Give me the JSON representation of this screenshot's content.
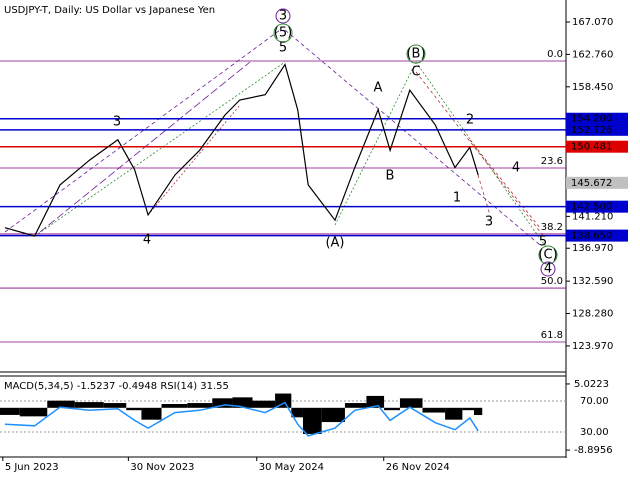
{
  "chart_data": {
    "type": "line",
    "title": "USDJPY-T, Daily:  US Dollar vs Japanese Yen",
    "x": [
      "2023-06-08",
      "2023-07-20",
      "2023-08-25",
      "2023-10-06",
      "2023-11-15",
      "2023-12-09",
      "2023-12-28",
      "2024-02-04",
      "2024-03-10",
      "2024-04-15",
      "2024-05-06",
      "2024-06-11",
      "2024-07-09",
      "2024-07-27",
      "2024-08-11",
      "2024-09-18",
      "2024-10-16",
      "2024-11-18",
      "2024-12-05",
      "2025-01-02",
      "2025-02-07",
      "2025-03-07",
      "2025-03-28",
      "2025-04-09"
    ],
    "values": [
      139.7,
      138.6,
      145.4,
      148.7,
      151.4,
      147.4,
      141.4,
      146.7,
      150.0,
      154.7,
      156.7,
      157.4,
      161.4,
      155.4,
      145.4,
      140.7,
      147.7,
      155.4,
      150.0,
      158.0,
      153.4,
      147.7,
      150.4,
      146.7
    ],
    "color": "#000000",
    "xlim": [
      "2023-06-01",
      "2025-08-10"
    ],
    "xticks": [
      {
        "value": "2023-06-05",
        "label": "5 Jun 2023"
      },
      {
        "value": "2023-11-30",
        "label": "30 Nov 2023"
      },
      {
        "value": "2024-05-30",
        "label": "30 May 2024"
      },
      {
        "value": "2024-11-26",
        "label": "26 Nov 2024"
      }
    ],
    "ylim": [
      120.5,
      170.0
    ],
    "yticks": [
      {
        "value": 167.07,
        "label": "167.070"
      },
      {
        "value": 162.76,
        "label": "162.760"
      },
      {
        "value": 158.45,
        "label": "158.450"
      },
      {
        "value": 141.21,
        "label": "141.210"
      },
      {
        "value": 136.97,
        "label": "136.970"
      },
      {
        "value": 132.59,
        "label": "132.590"
      },
      {
        "value": 128.28,
        "label": "128.280"
      },
      {
        "value": 123.97,
        "label": "123.970"
      }
    ],
    "levels": [
      {
        "value": 154.2,
        "label": "154.200",
        "color": "#0000cc"
      },
      {
        "value": 152.726,
        "color": "#0000cc"
      },
      {
        "value": 150.481,
        "color": "#dd0000"
      },
      {
        "value": 142.5,
        "label": "142.500",
        "color": "#0000cc"
      },
      {
        "value": 138.65,
        "label": "138.650",
        "color": "#0000cc"
      }
    ],
    "current_price": {
      "value": 145.672,
      "color": "#c0c0c0"
    },
    "fib_levels": [
      {
        "value": 161.88,
        "label": "0.0"
      },
      {
        "value": 147.65,
        "label": "23.6"
      },
      {
        "value": 138.87,
        "label": "38.2"
      },
      {
        "value": 131.67,
        "label": "50.0"
      },
      {
        "value": 124.49,
        "label": "61.8"
      }
    ],
    "fib_color": "#800080",
    "annotations": [
      {
        "text": "3",
        "color": "#6a1b9a",
        "circled": true
      },
      {
        "text": "(5)",
        "color": "#2e8b2e",
        "circled": true
      },
      {
        "text": "5",
        "color": "#b03030"
      },
      {
        "text": "3",
        "color": "#b03030"
      },
      {
        "text": "4",
        "color": "#b03030"
      },
      {
        "text": "(A)",
        "color": "#2e8b2e"
      },
      {
        "text": "A",
        "color": "#b03030"
      },
      {
        "text": "B",
        "color": "#b03030"
      },
      {
        "text": "(B)",
        "color": "#2e8b2e",
        "circled": true
      },
      {
        "text": "C",
        "color": "#b03030"
      },
      {
        "text": "2",
        "color": "#b03030"
      },
      {
        "text": "1",
        "color": "#b03030"
      },
      {
        "text": "3",
        "color": "#b03030"
      },
      {
        "text": "4",
        "color": "#b03030"
      },
      {
        "text": "5",
        "color": "#b03030"
      },
      {
        "text": "(C)",
        "color": "#2e8b2e",
        "circled": true
      },
      {
        "text": "4",
        "color": "#6a1b9a",
        "circled": true
      }
    ],
    "indicator": {
      "title": "MACD(5,34,5) -1.5237 -0.4948 RSI(14) 31.55",
      "macd": [
        -1.5,
        -1.8,
        1.5,
        1.2,
        1.0,
        -0.5,
        -2.5,
        0.8,
        1.0,
        2.0,
        2.2,
        1.5,
        3.0,
        -2.0,
        -5.5,
        -3.0,
        1.0,
        2.5,
        -0.5,
        2.0,
        -1.0,
        -2.5,
        -0.5,
        -1.5237
      ],
      "macd_color": "#000000",
      "rsi": [
        40,
        38,
        62,
        58,
        60,
        45,
        35,
        55,
        58,
        65,
        63,
        55,
        68,
        40,
        25,
        35,
        58,
        64,
        45,
        62,
        42,
        33,
        48,
        31.55
      ],
      "rsi_color": "#1e90ff",
      "ylim": [
        -10.35,
        6.48
      ],
      "yticks": [
        5.0223,
        -8.8956
      ],
      "rsi_ylim": [
        -2.3,
        101
      ],
      "rsi_yticks": [
        {
          "value": 70,
          "label": "70.00"
        },
        {
          "value": 30,
          "label": "30.00"
        }
      ]
    }
  }
}
